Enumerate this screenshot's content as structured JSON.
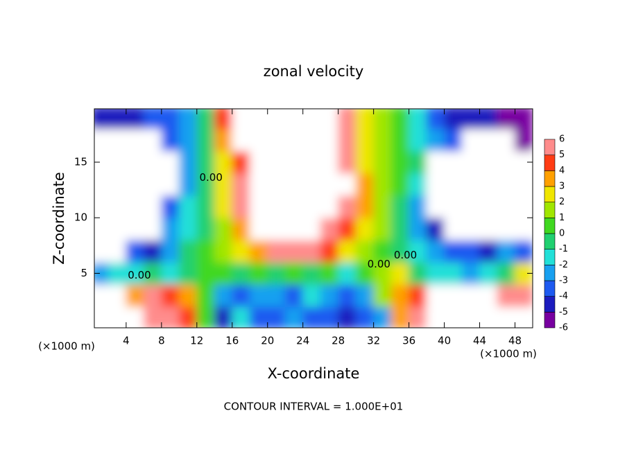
{
  "chart_data": {
    "type": "heatmap",
    "title": "zonal velocity",
    "x_label": "X-coordinate",
    "y_label": "Z-coordinate",
    "x_unit": "(×1000 m)",
    "footer": "CONTOUR INTERVAL = 1.000E+01",
    "x": [
      1,
      3,
      5,
      7,
      9,
      11,
      13,
      15,
      17,
      19,
      21,
      23,
      25,
      27,
      29,
      31,
      33,
      35,
      37,
      39,
      41,
      43,
      45,
      47,
      49
    ],
    "y": [
      1,
      3,
      5,
      7,
      9,
      11,
      13,
      15,
      17,
      19
    ],
    "values": [
      [
        10,
        10,
        10,
        6,
        5,
        4,
        0,
        -5,
        -2,
        -4,
        -4,
        -3,
        -4,
        -4,
        -5,
        -4,
        -3,
        3,
        6,
        10,
        10,
        10,
        10,
        10,
        10
      ],
      [
        10,
        10,
        3,
        5,
        4,
        3,
        0,
        -3,
        -4,
        -3,
        -3,
        -4,
        -2,
        -3,
        -4,
        -3,
        1,
        3,
        4,
        10,
        10,
        10,
        10,
        6,
        5
      ],
      [
        -3,
        -2,
        -2,
        -1,
        -2,
        -1,
        0,
        0,
        -1,
        0,
        -1,
        0,
        -1,
        0,
        -2,
        0,
        1,
        2,
        -1,
        -2,
        -2,
        -3,
        -2,
        -1,
        2
      ],
      [
        -10,
        -10,
        -4,
        -5,
        -3,
        -1,
        0,
        1,
        2,
        3,
        5,
        5,
        5,
        4,
        2,
        1,
        0,
        -1,
        -2,
        -3,
        -4,
        -4,
        -5,
        -3,
        -4
      ],
      [
        -10,
        -10,
        -10,
        -10,
        -3,
        -2,
        -1,
        1,
        3,
        10,
        10,
        10,
        10,
        6,
        4,
        2,
        1,
        -1,
        -3,
        -5,
        -10,
        -10,
        -10,
        -10,
        -10
      ],
      [
        -10,
        -10,
        -10,
        -10,
        -4,
        -2,
        -1,
        2,
        5,
        10,
        10,
        10,
        10,
        10,
        6,
        3,
        1,
        -1,
        -3,
        -10,
        -10,
        -10,
        -10,
        -10,
        -10
      ],
      [
        -10,
        -10,
        -10,
        -10,
        -10,
        -3,
        -1,
        2,
        5,
        10,
        10,
        10,
        10,
        10,
        7,
        3,
        1,
        0,
        -2,
        -10,
        -10,
        -10,
        -10,
        -10,
        -10
      ],
      [
        -10,
        -10,
        -10,
        -10,
        -10,
        -3,
        -1,
        2,
        4,
        10,
        10,
        10,
        10,
        10,
        6,
        2,
        1,
        0,
        -1,
        -10,
        -10,
        -10,
        -10,
        -10,
        -10
      ],
      [
        -10,
        -10,
        -10,
        -10,
        -4,
        -3,
        -1,
        3,
        10,
        10,
        10,
        10,
        10,
        10,
        5,
        2,
        1,
        0,
        -2,
        -3,
        -4,
        -10,
        -10,
        -10,
        -6
      ],
      [
        -5,
        -5,
        -5,
        -4,
        -4,
        -3,
        -1,
        4,
        10,
        10,
        10,
        10,
        10,
        10,
        5,
        2,
        1,
        0,
        -2,
        -4,
        -5,
        -5,
        -5,
        -6,
        -6
      ]
    ],
    "xlim": [
      0.4,
      50
    ],
    "ylim": [
      0.1,
      19.8
    ],
    "xticks": [
      4,
      8,
      12,
      16,
      20,
      24,
      28,
      32,
      36,
      40,
      44,
      48
    ],
    "yticks": [
      5,
      10,
      15
    ],
    "clim": [
      -6,
      6
    ],
    "cticks": [
      -6,
      -5,
      -4,
      -3,
      -2,
      -1,
      0,
      1,
      2,
      3,
      4,
      5,
      6
    ],
    "colors": [
      "#7800a0",
      "#1c1cbe",
      "#1e5af0",
      "#18a0f0",
      "#22e0d8",
      "#20d070",
      "#40d820",
      "#a0e600",
      "#f0e600",
      "#ffa000",
      "#ff3c14",
      "#ff8c8c"
    ],
    "annotations": [
      {
        "text": "0.00",
        "x": 13.6,
        "y": 13.6
      },
      {
        "text": "0.00",
        "x": 5.5,
        "y": 4.8
      },
      {
        "text": "0.00",
        "x": 32.6,
        "y": 5.8
      },
      {
        "text": "0.00",
        "x": 35.6,
        "y": 6.6
      }
    ]
  }
}
